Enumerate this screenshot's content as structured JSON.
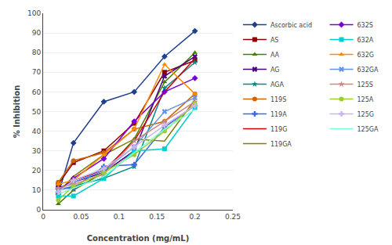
{
  "chart_data": {
    "type": "line",
    "x": [
      0.02,
      0.04,
      0.08,
      0.12,
      0.16,
      0.2
    ],
    "series": [
      {
        "name": "Ascorbic acid",
        "color": "#1f3f8f",
        "marker": "diamond",
        "values": [
          8,
          34,
          55,
          60,
          78,
          91
        ]
      },
      {
        "name": "AS",
        "color": "#8b0000",
        "marker": "square",
        "values": [
          13,
          24,
          30,
          44,
          70,
          76
        ]
      },
      {
        "name": "AA",
        "color": "#4a7c00",
        "marker": "triangle-up",
        "values": [
          3,
          10,
          19,
          36,
          65,
          80
        ]
      },
      {
        "name": "AG",
        "color": "#4b0082",
        "marker": "x",
        "values": [
          11,
          14,
          19,
          30,
          68,
          78
        ]
      },
      {
        "name": "AGA",
        "color": "#008b8b",
        "marker": "star",
        "values": [
          10,
          12,
          16,
          22,
          62,
          75
        ]
      },
      {
        "name": "119S",
        "color": "#cc6600",
        "marker": "circle",
        "values": [
          14,
          25,
          29,
          41,
          45,
          59
        ]
      },
      {
        "name": "119A",
        "color": "#4169e1",
        "marker": "cross",
        "values": [
          11,
          11,
          22,
          23,
          42,
          53
        ]
      },
      {
        "name": "119G",
        "color": "#cc0000",
        "values": [
          10,
          15,
          20,
          35,
          60,
          77
        ]
      },
      {
        "name": "119GA",
        "color": "#808000",
        "values": [
          9,
          17,
          28,
          36,
          35,
          56
        ]
      },
      {
        "name": "632S",
        "color": "#7b00d4",
        "marker": "diamond",
        "values": [
          9,
          16,
          26,
          45,
          60,
          67
        ]
      },
      {
        "name": "632A",
        "color": "#00ced1",
        "marker": "square",
        "values": [
          7,
          7,
          16,
          30,
          31,
          52
        ]
      },
      {
        "name": "632G",
        "color": "#ff8c00",
        "marker": "triangle-up",
        "values": [
          13,
          15,
          28,
          41,
          74,
          59
        ]
      },
      {
        "name": "632GA",
        "color": "#6495ed",
        "marker": "x",
        "values": [
          10,
          14,
          20,
          32,
          50,
          57
        ]
      },
      {
        "name": "125S",
        "color": "#cd8585",
        "marker": "star",
        "values": [
          11,
          13,
          18,
          35,
          45,
          55
        ]
      },
      {
        "name": "125A",
        "color": "#9acd32",
        "marker": "circle",
        "values": [
          5,
          12,
          19,
          28,
          40,
          54
        ]
      },
      {
        "name": "125G",
        "color": "#c8b8e8",
        "marker": "cross",
        "values": [
          9,
          15,
          21,
          32,
          43,
          53
        ]
      },
      {
        "name": "125GA",
        "color": "#7fffd4",
        "values": [
          8,
          11,
          17,
          29,
          41,
          51
        ]
      }
    ],
    "xlabel": "Concentration (mg/mL)",
    "ylabel": "% Inhibition",
    "xlim": [
      0,
      0.25
    ],
    "ylim": [
      0,
      100
    ],
    "xticks": [
      0,
      0.05,
      0.1,
      0.15,
      0.2,
      0.25
    ],
    "yticks": [
      0,
      10,
      20,
      30,
      40,
      50,
      60,
      70,
      80,
      90,
      100
    ],
    "grid": true,
    "legend": "right"
  }
}
